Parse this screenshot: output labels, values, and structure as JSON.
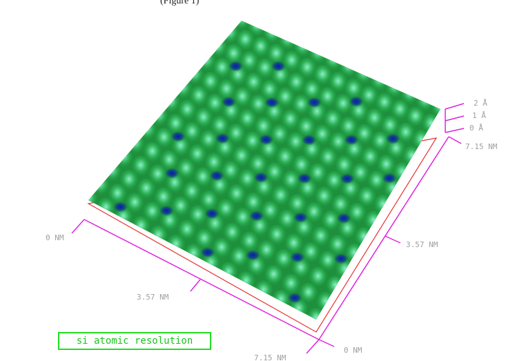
{
  "caption": "si atomic resolution",
  "top_fragment": "(Figure 1)",
  "axes": {
    "z_ticks": [
      "2 Å",
      "1 Å",
      "0 Å"
    ],
    "x_labels": {
      "start": "0 NM",
      "mid": "3.57 NM",
      "end": "7.15 NM"
    },
    "y_labels": {
      "start": "0 NM",
      "mid": "3.57 NM",
      "end": "7.15 NM"
    }
  },
  "colors": {
    "surface_high": "#7de8b8",
    "surface_mid": "#1f9a3e",
    "surface_low": "#0a2a9a",
    "axis_magenta": "#e020e0",
    "base_red": "#e83030",
    "caption_green": "#22dd22"
  }
}
